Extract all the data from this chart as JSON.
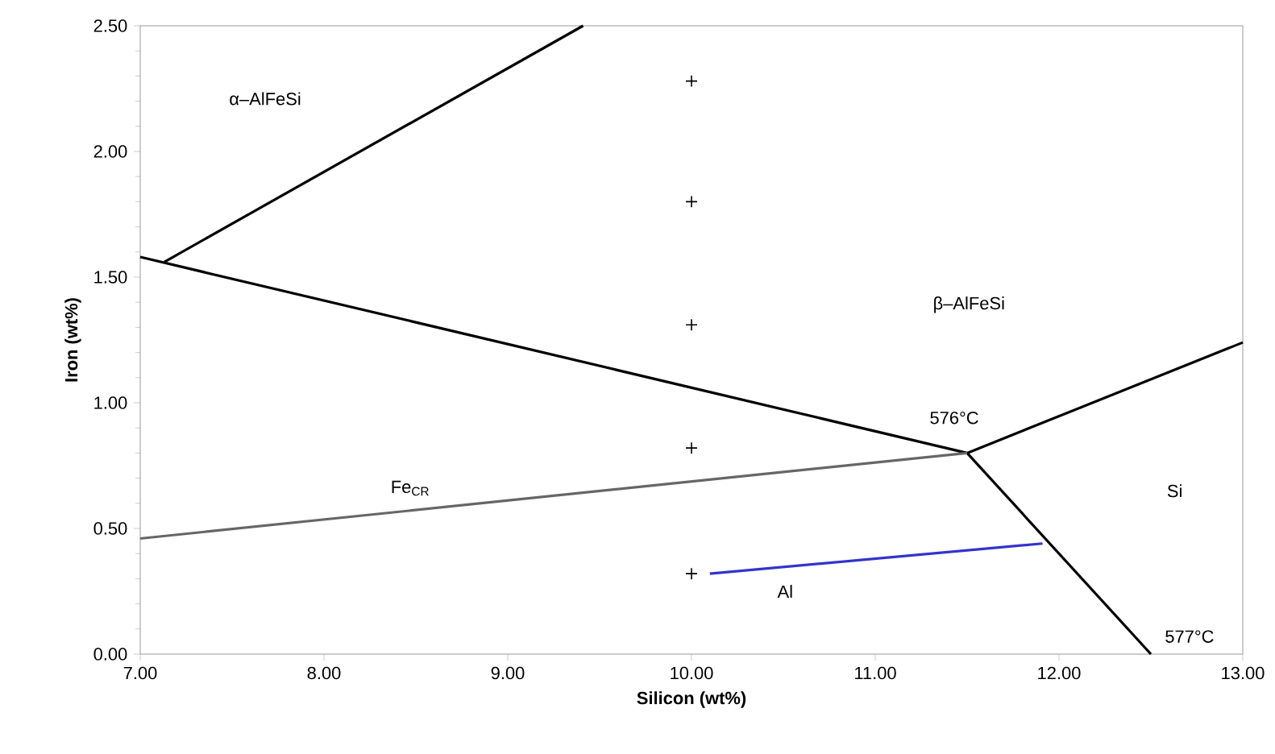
{
  "chart_data": {
    "type": "line",
    "xlabel": "Silicon (wt%)",
    "ylabel": "Iron (wt%)",
    "xlim": [
      7,
      13
    ],
    "ylim": [
      0,
      2.5
    ],
    "xticks": [
      {
        "value": 7,
        "label": "7.00"
      },
      {
        "value": 8,
        "label": "8.00"
      },
      {
        "value": 9,
        "label": "9.00"
      },
      {
        "value": 10,
        "label": "10.00"
      },
      {
        "value": 11,
        "label": "11.00"
      },
      {
        "value": 12,
        "label": "12.00"
      },
      {
        "value": 13,
        "label": "13.00"
      }
    ],
    "yticks": [
      {
        "value": 0,
        "label": "0.00"
      },
      {
        "value": 0.5,
        "label": "0.50"
      },
      {
        "value": 1,
        "label": "1.00"
      },
      {
        "value": 1.5,
        "label": "1.50"
      },
      {
        "value": 2,
        "label": "2.00"
      },
      {
        "value": 2.5,
        "label": "2.50"
      }
    ],
    "series": [
      {
        "color": "#000000",
        "x": [
          7.13,
          9.41
        ],
        "values": [
          1.56,
          2.5
        ]
      },
      {
        "color": "#000000",
        "x": [
          7,
          11.5,
          13
        ],
        "values": [
          1.58,
          0.8,
          1.24
        ]
      },
      {
        "color": "#000000",
        "x": [
          11.5,
          12.5
        ],
        "values": [
          0.8,
          0
        ]
      },
      {
        "color": "#666666",
        "x": [
          7,
          11.5
        ],
        "values": [
          0.46,
          0.8
        ]
      },
      {
        "type": "scatter",
        "color": "#000000",
        "marker": "cross",
        "x": [
          10,
          10,
          10,
          10,
          10
        ],
        "values": [
          2.28,
          1.8,
          1.31,
          0.82,
          0.32
        ]
      },
      {
        "color": "#3333cc",
        "x": [
          10.1,
          11.91
        ],
        "values": [
          0.32,
          0.44
        ]
      }
    ],
    "annotations": [
      "α–AlFeSi",
      "β–AlFeSi",
      "576°C",
      "Si",
      "Al",
      "577°C",
      "Fe$_{CR}$"
    ]
  }
}
